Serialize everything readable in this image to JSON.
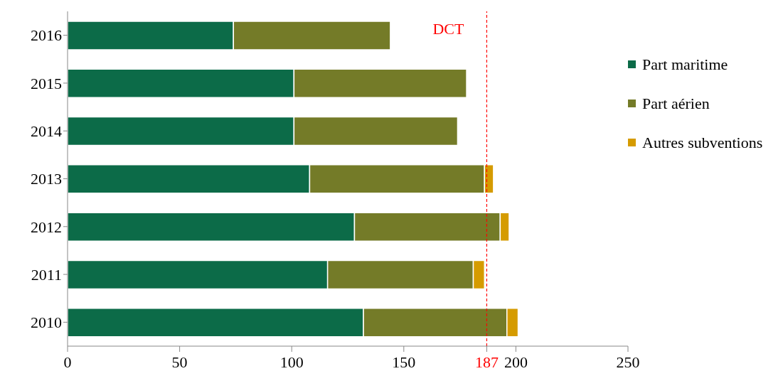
{
  "chart_data": {
    "type": "bar",
    "orientation": "horizontal",
    "stacked": true,
    "categories": [
      "2016",
      "2015",
      "2014",
      "2013",
      "2012",
      "2011",
      "2010"
    ],
    "series": [
      {
        "name": "Part maritime",
        "color": "#0c6b48",
        "values": [
          74,
          101,
          101,
          108,
          128,
          116,
          132
        ]
      },
      {
        "name": "Part aérien",
        "color": "#747b28",
        "values": [
          70,
          77,
          73,
          78,
          65,
          65,
          64
        ]
      },
      {
        "name": "Autres subventions",
        "color": "#d59b00",
        "values": [
          null,
          null,
          null,
          4,
          4,
          5,
          5
        ]
      }
    ],
    "xlim": [
      0,
      250
    ],
    "xticks": [
      0,
      50,
      100,
      150,
      187,
      200,
      250
    ],
    "ref_lines": [
      {
        "axis": "x",
        "value": 187,
        "label": "DCT",
        "color": "#ff0000",
        "line_style": "dashed"
      }
    ],
    "legend": "right",
    "grid": false
  }
}
